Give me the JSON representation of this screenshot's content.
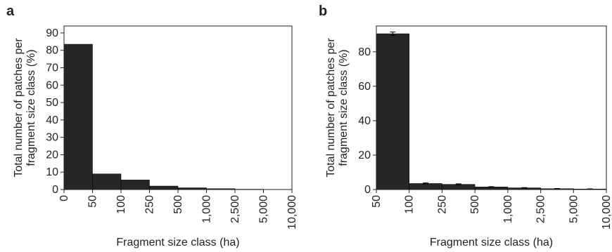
{
  "chart_data": [
    {
      "type": "histogram",
      "panel": "a",
      "ylabel": [
        "Total number of patches per",
        "fragment size class (%)"
      ],
      "xlabel": "Fragment size class (ha)",
      "bins": [
        0,
        50,
        100,
        250,
        500,
        {
          "value": 1000,
          "label": "1,000"
        },
        {
          "value": 2500,
          "label": "2,500"
        },
        {
          "value": 5000,
          "label": "5,000"
        },
        {
          "value": 10000,
          "label": "10,000"
        }
      ],
      "values": [
        83.5,
        9,
        5.5,
        2,
        1,
        0.5,
        0.2,
        0.1
      ],
      "color": "#262626",
      "ylim": [
        0,
        94
      ],
      "yticks": [
        0,
        10,
        20,
        30,
        40,
        50,
        60,
        70,
        80,
        90
      ]
    },
    {
      "type": "histogram",
      "panel": "b",
      "ylabel": [
        "Total number of patches per",
        "fragment size class (%)"
      ],
      "xlabel": "Fragment size class (ha)",
      "bins": [
        50,
        100,
        250,
        500,
        {
          "value": 1000,
          "label": "1,000"
        },
        {
          "value": 2500,
          "label": "2,500"
        },
        {
          "value": 5000,
          "label": "5,000"
        },
        {
          "value": 10000,
          "label": "10,000"
        }
      ],
      "values": [
        90.5,
        3.5,
        3,
        1.5,
        1,
        0.5,
        0.3
      ],
      "errors": [
        1,
        0.3,
        0.3,
        0.2,
        0.1,
        0.1,
        0.1
      ],
      "color": "#262626",
      "ylim": [
        0,
        95
      ],
      "yticks": [
        0,
        20,
        40,
        60,
        80
      ]
    }
  ]
}
